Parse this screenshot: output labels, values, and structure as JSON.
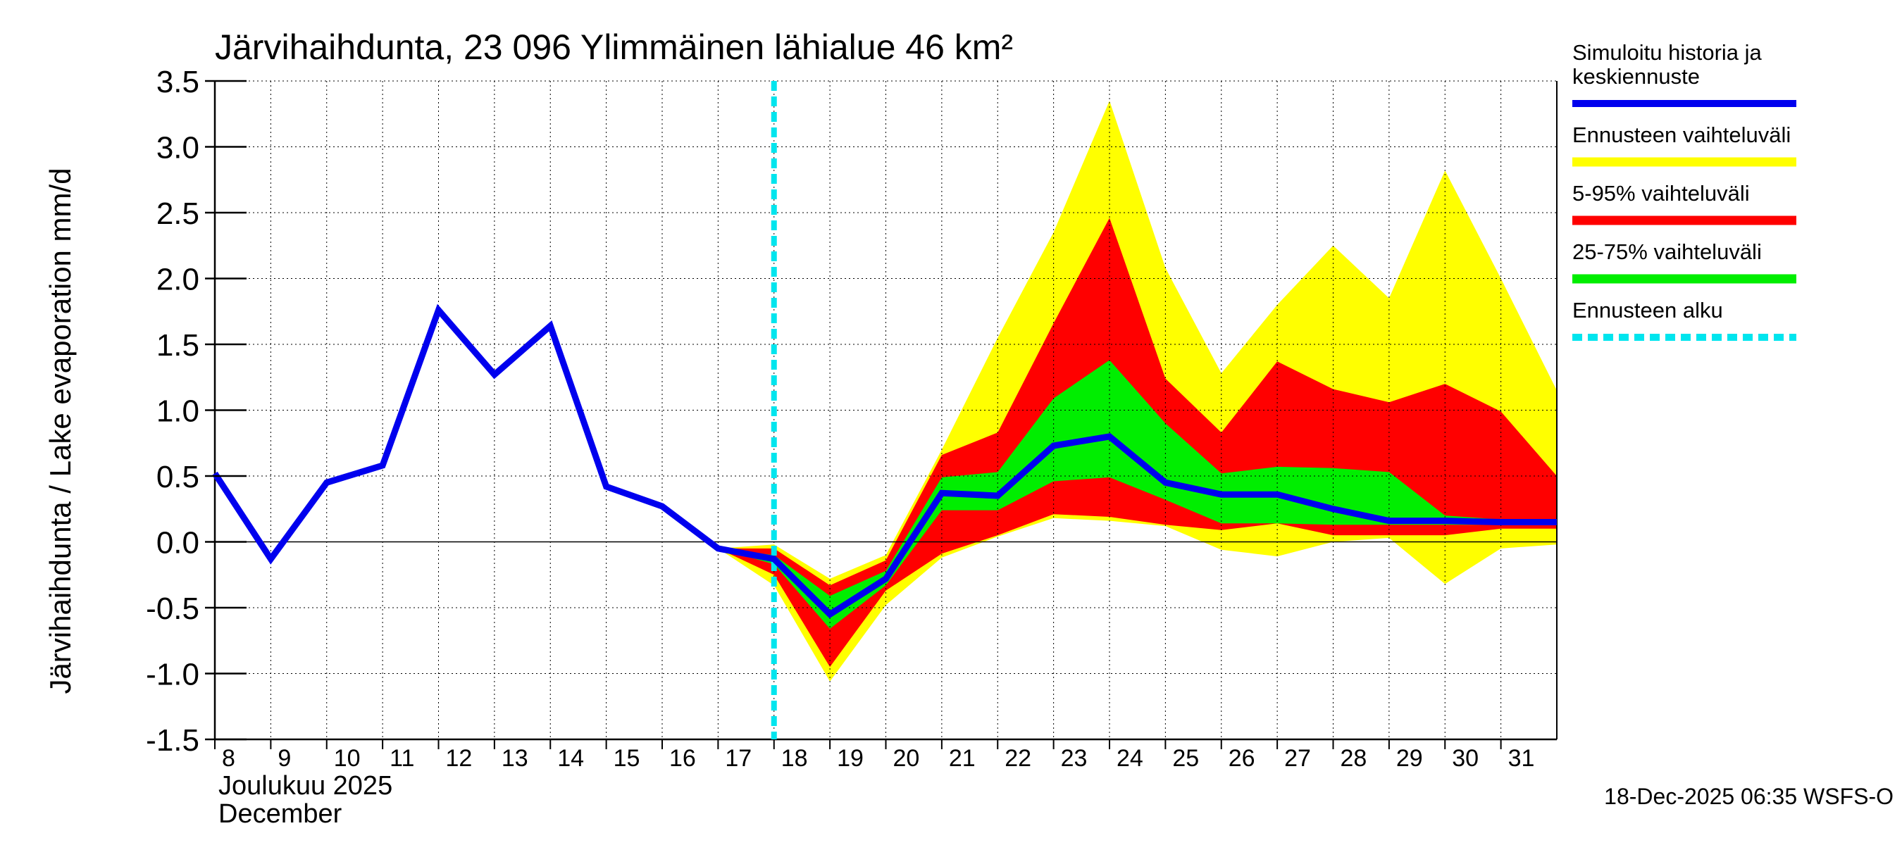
{
  "colors": {
    "median": "#0000ee",
    "range": "#ffff00",
    "p5_95": "#ff0000",
    "p25_75": "#00ee00",
    "forecast_start": "#00e5ee",
    "grid": "#000000"
  },
  "footer": {
    "timestamp": "18-Dec-2025 06:35 WSFS-O"
  },
  "chart_data": {
    "type": "area",
    "title": "Järvihaihdunta, 23 096 Ylimmäinen lähialue 46 km²",
    "ylabel": "Järvihaihdunta / Lake evaporation   mm/d",
    "xlabel_line1": "Joulukuu  2025",
    "xlabel_line2": "December",
    "ylim": [
      -1.5,
      3.5
    ],
    "yticks": [
      -1.5,
      -1.0,
      -0.5,
      0.0,
      0.5,
      1.0,
      1.5,
      2.0,
      2.5,
      3.0,
      3.5
    ],
    "ytick_labels": [
      "-1.5",
      "-1.0",
      "-0.5",
      "0.0",
      "0.5",
      "1.0",
      "1.5",
      "2.0",
      "2.5",
      "3.0",
      "3.5"
    ],
    "xlim": [
      8,
      32
    ],
    "x_ticks": [
      8,
      9,
      10,
      11,
      12,
      13,
      14,
      15,
      16,
      17,
      18,
      19,
      20,
      21,
      22,
      23,
      24,
      25,
      26,
      27,
      28,
      29,
      30,
      31
    ],
    "x_tick_labels": [
      "8",
      "9",
      "10",
      "11",
      "12",
      "13",
      "14",
      "15",
      "16",
      "17",
      "18",
      "19",
      "20",
      "21",
      "22",
      "23",
      "24",
      "25",
      "26",
      "27",
      "28",
      "29",
      "30",
      "31"
    ],
    "forecast_start_x": 18,
    "median": {
      "x": [
        8,
        9,
        10,
        11,
        12,
        13,
        14,
        15,
        16,
        17,
        18,
        19,
        20,
        21,
        22,
        23,
        24,
        25,
        26,
        27,
        28,
        29,
        30,
        31,
        32
      ],
      "y": [
        0.52,
        -0.13,
        0.45,
        0.58,
        1.76,
        1.27,
        1.64,
        0.42,
        0.27,
        -0.05,
        -0.13,
        -0.55,
        -0.28,
        0.37,
        0.35,
        0.73,
        0.8,
        0.45,
        0.36,
        0.36,
        0.25,
        0.16,
        0.16,
        0.15,
        0.15
      ]
    },
    "bands_x": [
      17,
      18,
      19,
      20,
      21,
      22,
      23,
      24,
      25,
      26,
      27,
      28,
      29,
      30,
      31,
      32
    ],
    "range_band": {
      "upper": [
        -0.05,
        -0.02,
        -0.28,
        -0.1,
        0.7,
        1.55,
        2.35,
        3.35,
        2.08,
        1.28,
        1.8,
        2.25,
        1.85,
        2.82,
        2.0,
        1.15
      ],
      "lower": [
        -0.05,
        -0.33,
        -1.06,
        -0.48,
        -0.12,
        0.04,
        0.18,
        0.16,
        0.12,
        -0.06,
        -0.11,
        0.0,
        0.03,
        -0.32,
        -0.05,
        -0.02
      ]
    },
    "p5_95_band": {
      "upper": [
        -0.05,
        -0.05,
        -0.33,
        -0.14,
        0.66,
        0.83,
        1.66,
        2.46,
        1.24,
        0.83,
        1.37,
        1.16,
        1.06,
        1.2,
        0.99,
        0.5
      ]
    },
    "p5_95_lower": [
      -0.05,
      -0.25,
      -0.95,
      -0.37,
      -0.09,
      0.05,
      0.21,
      0.19,
      0.13,
      0.09,
      0.14,
      0.05,
      0.05,
      0.05,
      0.1,
      0.1
    ],
    "p25_75_band": {
      "upper": [
        -0.05,
        -0.1,
        -0.41,
        -0.22,
        0.49,
        0.53,
        1.09,
        1.38,
        0.9,
        0.52,
        0.57,
        0.56,
        0.53,
        0.2,
        0.17,
        0.17
      ],
      "lower": [
        -0.05,
        -0.17,
        -0.66,
        -0.33,
        0.24,
        0.24,
        0.46,
        0.49,
        0.32,
        0.14,
        0.14,
        0.13,
        0.13,
        0.13,
        0.13,
        0.13
      ]
    },
    "legend": [
      {
        "key": "median",
        "label_lines": [
          "Simuloitu historia ja",
          "keskiennuste"
        ]
      },
      {
        "key": "range",
        "label_lines": [
          "Ennusteen vaihteluväli"
        ]
      },
      {
        "key": "p5_95",
        "label_lines": [
          "5-95% vaihteluväli"
        ]
      },
      {
        "key": "p25_75",
        "label_lines": [
          "25-75% vaihteluväli"
        ]
      },
      {
        "key": "forecast_start",
        "label_lines": [
          "Ennusteen alku"
        ]
      }
    ]
  }
}
